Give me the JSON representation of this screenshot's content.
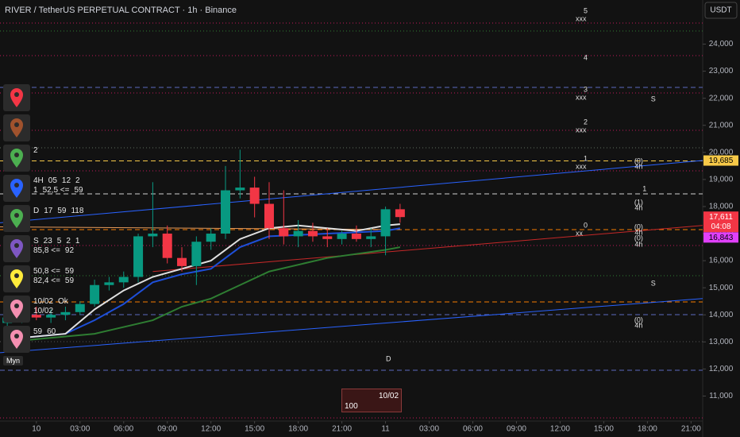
{
  "header": {
    "title": "RIVER / TetherUS PERPETUAL CONTRACT · 1h · Binance",
    "currency": "USDT"
  },
  "chart_data": {
    "type": "candlestick",
    "x": [
      -2,
      -1,
      0,
      1,
      2,
      3,
      4,
      5,
      6,
      7,
      8,
      9,
      10,
      11,
      12,
      13,
      14,
      15,
      16,
      17,
      18,
      19,
      20,
      21,
      22,
      23,
      24,
      25
    ],
    "open": [
      13700,
      13900,
      14000,
      13900,
      14000,
      14100,
      14400,
      15100,
      15200,
      15400,
      16900,
      17000,
      16100,
      15800,
      16700,
      17000,
      18600,
      18700,
      18100,
      17200,
      16900,
      17100,
      16900,
      16800,
      17000,
      16800,
      16900,
      17900
    ],
    "high": [
      14000,
      14100,
      14300,
      14200,
      14300,
      14500,
      15300,
      15400,
      15600,
      17000,
      18900,
      17300,
      16500,
      16900,
      17200,
      19500,
      20100,
      19100,
      18900,
      18600,
      17500,
      17400,
      17200,
      17100,
      17300,
      17200,
      18000,
      18100
    ],
    "low": [
      13500,
      13700,
      13800,
      13700,
      13800,
      14000,
      14300,
      14900,
      15000,
      15200,
      16500,
      15900,
      15600,
      15100,
      16400,
      16800,
      18300,
      17600,
      16800,
      16600,
      16500,
      16700,
      16500,
      16600,
      16700,
      16500,
      16200,
      17400
    ],
    "close": [
      13900,
      14000,
      13900,
      14000,
      14100,
      14400,
      15100,
      15200,
      15400,
      16900,
      17000,
      16100,
      15800,
      16700,
      17000,
      18600,
      18700,
      18100,
      17200,
      16900,
      17100,
      16900,
      16800,
      17000,
      16800,
      16900,
      17900,
      17611
    ],
    "up_color": "#089981",
    "down_color": "#f23645",
    "xlim": [
      -2.5,
      45.8
    ],
    "xticks": [
      {
        "value": 0,
        "label": "10"
      },
      {
        "value": 3,
        "label": "03:00"
      },
      {
        "value": 6,
        "label": "06:00"
      },
      {
        "value": 9,
        "label": "09:00"
      },
      {
        "value": 12,
        "label": "12:00"
      },
      {
        "value": 15,
        "label": "15:00"
      },
      {
        "value": 18,
        "label": "18:00"
      },
      {
        "value": 21,
        "label": "21:00"
      },
      {
        "value": 24,
        "label": "11"
      },
      {
        "value": 27,
        "label": "03:00"
      },
      {
        "value": 30,
        "label": "06:00"
      },
      {
        "value": 33,
        "label": "09:00"
      },
      {
        "value": 36,
        "label": "12:00"
      },
      {
        "value": 39,
        "label": "15:00"
      },
      {
        "value": 42,
        "label": "18:00"
      },
      {
        "value": 45,
        "label": "21:00"
      }
    ],
    "ylim": [
      9780,
      25630
    ],
    "yticks": [
      {
        "value": 11000,
        "label": "11,000"
      },
      {
        "value": 12000,
        "label": "12,000"
      },
      {
        "value": 13000,
        "label": "13,000"
      },
      {
        "value": 14000,
        "label": "14,000"
      },
      {
        "value": 15000,
        "label": "15,000"
      },
      {
        "value": 16000,
        "label": "16,000"
      },
      {
        "value": 17000,
        "label": "17,000"
      },
      {
        "value": 18000,
        "label": "18,000"
      },
      {
        "value": 19000,
        "label": "19,000"
      },
      {
        "value": 20000,
        "label": "20,000"
      },
      {
        "value": 21000,
        "label": "21,000"
      },
      {
        "value": 22000,
        "label": "22,000"
      },
      {
        "value": 23000,
        "label": "23,000"
      },
      {
        "value": 24000,
        "label": "24,000"
      }
    ],
    "grid": false,
    "levels": [
      {
        "value": 24780,
        "color": "#c2185b",
        "style": "dotted"
      },
      {
        "value": 24485,
        "color": "#2e7d32",
        "style": "dotted"
      },
      {
        "value": 23575,
        "color": "#c2185b",
        "style": "dotted"
      },
      {
        "value": 22400,
        "color": "#5c6bc0",
        "style": "dashed"
      },
      {
        "value": 22196,
        "color": "#c2185b",
        "style": "dotted"
      },
      {
        "value": 20816,
        "color": "#c2185b",
        "style": "dotted"
      },
      {
        "value": 20170,
        "color": "#5f6f5f",
        "style": "dotted"
      },
      {
        "value": 19685,
        "color": "#f7c948",
        "style": "dashed"
      },
      {
        "value": 19319,
        "color": "#c2185b",
        "style": "dotted"
      },
      {
        "value": 18468,
        "color": "#d0d0d0",
        "style": "dashed"
      },
      {
        "value": 17147,
        "color": "#f57c00",
        "style": "dashed"
      },
      {
        "value": 16560,
        "color": "#c2185b",
        "style": "dotted"
      },
      {
        "value": 15445,
        "color": "#2e7d32",
        "style": "dotted"
      },
      {
        "value": 14476,
        "color": "#f57c00",
        "style": "dashed"
      },
      {
        "value": 14007,
        "color": "#5c6bc0",
        "style": "dashed"
      },
      {
        "value": 13009,
        "color": "#555555",
        "style": "dotted"
      },
      {
        "value": 11952,
        "color": "#5c6bc0",
        "style": "dashed"
      },
      {
        "value": 10191,
        "color": "#c2185b",
        "style": "dotted"
      }
    ],
    "lines": [
      {
        "color": "#2962ff",
        "x": [
          -2.5,
          45.8
        ],
        "values": [
          17400,
          19700
        ]
      },
      {
        "color": "#2962ff",
        "x": [
          -2.5,
          45.8
        ],
        "values": [
          12600,
          14600
        ]
      },
      {
        "color": "#c62828",
        "x": [
          8,
          45.8
        ],
        "values": [
          15600,
          17300
        ]
      },
      {
        "color": "#e69a5a",
        "x": [
          -2.5,
          25
        ],
        "values": [
          17250,
          17150
        ]
      },
      {
        "color": "#2e7d32",
        "x": [
          -2,
          4,
          8,
          10,
          12,
          14,
          16,
          20,
          24,
          25
        ],
        "values": [
          13000,
          13300,
          13800,
          14300,
          14600,
          15100,
          15600,
          16100,
          16400,
          16500
        ]
      },
      {
        "color": "#1e4fd8",
        "x": [
          -2,
          2,
          4,
          6,
          8,
          10,
          12,
          14,
          16,
          18,
          20,
          22,
          24,
          25
        ],
        "values": [
          13100,
          13300,
          13800,
          14400,
          15200,
          15500,
          15700,
          16500,
          16900,
          16950,
          17000,
          17050,
          17100,
          17200
        ]
      },
      {
        "color": "#e0e0e0",
        "x": [
          -2,
          2,
          4,
          6,
          8,
          10,
          12,
          14,
          16,
          18,
          20,
          22,
          24,
          25
        ],
        "values": [
          13100,
          13300,
          14200,
          14900,
          15400,
          15700,
          16000,
          16800,
          17200,
          17300,
          17200,
          17100,
          17300,
          17350
        ]
      }
    ],
    "level_markers": [
      {
        "value": 25070,
        "label": "5",
        "text": "xxx"
      },
      {
        "value": 23487,
        "label": "4"
      },
      {
        "value": 22167,
        "label": "3",
        "text": "xxx"
      },
      {
        "value": 20963,
        "label": "2",
        "text": "xxx"
      },
      {
        "value": 19613,
        "label": "1",
        "text": "xxx"
      },
      {
        "value": 17147,
        "label": "0",
        "text": "xx"
      }
    ],
    "markers": [
      {
        "text": "(0)",
        "x": 41.4,
        "y": 19672
      },
      {
        "text": "4h",
        "x": 41.4,
        "y": 19466
      },
      {
        "text": "1",
        "x": 41.8,
        "y": 18640
      },
      {
        "text": "(1)",
        "x": 41.4,
        "y": 18145
      },
      {
        "text": "4h",
        "x": 41.4,
        "y": 17940
      },
      {
        "text": "(0)",
        "x": 41.4,
        "y": 17235
      },
      {
        "text": "4h",
        "x": 41.4,
        "y": 17030
      },
      {
        "text": "(0)",
        "x": 41.4,
        "y": 16824
      },
      {
        "text": "4h",
        "x": 41.4,
        "y": 16590
      },
      {
        "text": "S",
        "x": 42.4,
        "y": 15151
      },
      {
        "text": "(0)",
        "x": 41.4,
        "y": 13801
      },
      {
        "text": "4h",
        "x": 41.4,
        "y": 13596
      },
      {
        "text": "S",
        "x": 42.4,
        "y": 21961
      },
      {
        "text": "D",
        "x": 24.2,
        "y": 12363
      }
    ],
    "price_labels": [
      {
        "value": 19685,
        "label": "19,685",
        "color": "#f7c948",
        "text_color": "#000000"
      },
      {
        "value": 17611,
        "label": "17,611",
        "countdown": "04:08",
        "color": "#f23645",
        "text_color": "#ffffff"
      },
      {
        "value": 16843,
        "label": "16,843",
        "color": "#e040fb",
        "text_color": "#000000"
      }
    ]
  },
  "sidebar": {
    "rows": [
      {
        "color": "#f23645",
        "tokens": []
      },
      {
        "color": "#a0522d",
        "tokens": []
      },
      {
        "color": "#4caf50",
        "tokens": [
          "2"
        ]
      },
      {
        "color": "#2962ff",
        "tokens": [
          "4H",
          "05",
          "12",
          "2",
          "1",
          "52,5 <=",
          "59"
        ]
      },
      {
        "color": "#4caf50",
        "tokens": [
          "D",
          "17",
          "59",
          "118"
        ]
      },
      {
        "color": "#7e57c2",
        "tokens": [
          "S",
          "23",
          "5",
          "2",
          "1",
          "85,8 <=",
          "92"
        ]
      },
      {
        "color": "#ffeb3b",
        "tokens": [
          "50,8 <=",
          "59",
          "82,4 <=",
          "59"
        ]
      },
      {
        "color": "#f48fb1",
        "tokens": [
          "10/02",
          "Ok",
          "10/02"
        ]
      },
      {
        "color": "#f48fb1",
        "tokens": [
          "59",
          "60"
        ]
      }
    ],
    "footer": "Myn"
  },
  "badge": {
    "date": "10/02",
    "count": 100
  }
}
